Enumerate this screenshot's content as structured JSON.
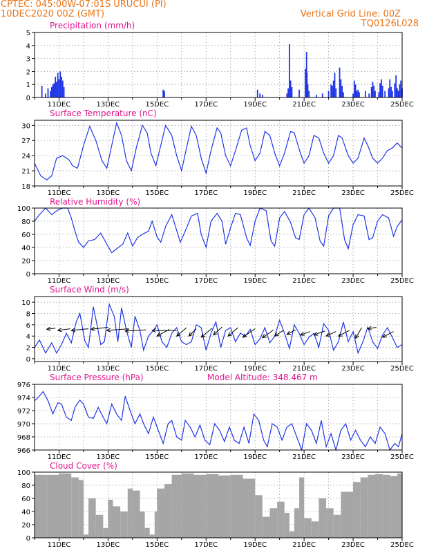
{
  "header": {
    "line1_left": "CPTEC:   045:00W-07:01S   URUCUI (PI)",
    "line2_left": "10DEC2020 00Z (GMT)",
    "line1_right": "Vertical Grid Line: 00Z",
    "line2_right": "TQ0126L028"
  },
  "colors": {
    "header": "#e8751a",
    "title": "#e0148c",
    "series": "#1f35e6",
    "cloud": "#a6a6a6",
    "wind": "#000000",
    "grid": "#9a9a9a"
  },
  "x_ticks": [
    "11DEC",
    "13DEC",
    "15DEC",
    "17DEC",
    "19DEC",
    "21DEC",
    "23DEC",
    "25DEC"
  ],
  "chart_data": [
    {
      "type": "bar",
      "title": "Precipitation (mm/h)",
      "ylim": [
        0,
        5
      ],
      "yticks": [
        0,
        1,
        2,
        3,
        4,
        5
      ],
      "points": [
        [
          0.3,
          0.9
        ],
        [
          0.45,
          0.3
        ],
        [
          0.55,
          0.7
        ],
        [
          0.65,
          0.5
        ],
        [
          0.7,
          0.8
        ],
        [
          0.75,
          1.0
        ],
        [
          0.8,
          1.1
        ],
        [
          0.85,
          1.6
        ],
        [
          0.9,
          1.2
        ],
        [
          0.95,
          1.9
        ],
        [
          1.0,
          1.4
        ],
        [
          1.05,
          2.0
        ],
        [
          1.1,
          1.6
        ],
        [
          1.15,
          1.3
        ],
        [
          1.2,
          0.8
        ],
        [
          5.25,
          0.6
        ],
        [
          5.3,
          0.5
        ],
        [
          9.1,
          0.6
        ],
        [
          9.2,
          0.3
        ],
        [
          9.3,
          0.2
        ],
        [
          10.3,
          0.3
        ],
        [
          10.35,
          0.7
        ],
        [
          10.4,
          4.1
        ],
        [
          10.45,
          1.3
        ],
        [
          10.5,
          0.8
        ],
        [
          10.8,
          0.6
        ],
        [
          11.05,
          2.2
        ],
        [
          11.1,
          3.5
        ],
        [
          11.12,
          1.9
        ],
        [
          11.15,
          1.0
        ],
        [
          11.2,
          0.5
        ],
        [
          11.5,
          0.2
        ],
        [
          11.75,
          0.3
        ],
        [
          12.0,
          0.5
        ],
        [
          12.1,
          1.0
        ],
        [
          12.15,
          0.9
        ],
        [
          12.2,
          1.3
        ],
        [
          12.25,
          1.9
        ],
        [
          12.3,
          0.7
        ],
        [
          12.45,
          2.3
        ],
        [
          12.5,
          1.4
        ],
        [
          12.55,
          0.9
        ],
        [
          12.6,
          0.4
        ],
        [
          13.0,
          0.3
        ],
        [
          13.05,
          1.3
        ],
        [
          13.1,
          1.0
        ],
        [
          13.15,
          0.5
        ],
        [
          13.2,
          0.6
        ],
        [
          13.25,
          0.4
        ],
        [
          13.5,
          0.5
        ],
        [
          13.65,
          0.3
        ],
        [
          13.75,
          0.8
        ],
        [
          13.8,
          1.2
        ],
        [
          13.85,
          0.9
        ],
        [
          13.9,
          0.5
        ],
        [
          14.05,
          0.4
        ],
        [
          14.1,
          1.1
        ],
        [
          14.15,
          1.4
        ],
        [
          14.2,
          0.9
        ],
        [
          14.3,
          0.5
        ],
        [
          14.45,
          0.7
        ],
        [
          14.5,
          1.4
        ],
        [
          14.55,
          0.8
        ],
        [
          14.6,
          0.5
        ],
        [
          14.7,
          1.1
        ],
        [
          14.75,
          1.7
        ],
        [
          14.8,
          0.7
        ],
        [
          14.85,
          0.5
        ],
        [
          14.9,
          1.0
        ],
        [
          14.95,
          1.3
        ],
        [
          15.0,
          0.7
        ]
      ]
    },
    {
      "type": "line",
      "title": "Surface Temperature (nC)",
      "ylim": [
        18,
        31
      ],
      "yticks": [
        18,
        21,
        24,
        27,
        30
      ],
      "x": [
        0,
        0.25,
        0.5,
        0.7,
        0.9,
        1.15,
        1.4,
        1.55,
        1.75,
        2.0,
        2.25,
        2.5,
        2.75,
        2.95,
        3.15,
        3.35,
        3.55,
        3.75,
        3.95,
        4.15,
        4.4,
        4.6,
        4.75,
        4.95,
        5.15,
        5.35,
        5.6,
        5.8,
        6.0,
        6.2,
        6.4,
        6.6,
        6.8,
        7.0,
        7.2,
        7.45,
        7.6,
        7.8,
        8.0,
        8.2,
        8.45,
        8.65,
        8.8,
        9.0,
        9.2,
        9.4,
        9.6,
        9.8,
        10.0,
        10.2,
        10.45,
        10.6,
        10.85,
        11.0,
        11.2,
        11.4,
        11.6,
        11.8,
        12.0,
        12.2,
        12.4,
        12.55,
        12.8,
        13.0,
        13.2,
        13.45,
        13.6,
        13.8,
        14.0,
        14.2,
        14.4,
        14.6,
        14.8,
        15.0
      ],
      "values": [
        22.5,
        20.0,
        19.2,
        20.0,
        23.5,
        24.0,
        23.2,
        22.0,
        21.5,
        26.0,
        29.8,
        27.0,
        23.0,
        21.5,
        26.0,
        30.5,
        28.0,
        23.0,
        21.0,
        25.5,
        30.0,
        28.5,
        24.5,
        22.0,
        26.0,
        30.0,
        28.0,
        24.0,
        21.0,
        25.5,
        29.8,
        28.0,
        23.5,
        20.5,
        25.0,
        29.5,
        28.5,
        24.0,
        22.0,
        25.0,
        29.0,
        29.5,
        26.0,
        23.0,
        24.5,
        28.8,
        28.0,
        24.5,
        22.0,
        24.5,
        28.8,
        28.5,
        24.5,
        22.5,
        24.0,
        28.0,
        27.5,
        24.5,
        22.5,
        24.0,
        28.0,
        27.5,
        24.0,
        22.5,
        23.5,
        27.5,
        26.0,
        23.5,
        22.5,
        23.5,
        25.0,
        25.5,
        26.5,
        25.5
      ]
    },
    {
      "type": "line",
      "title": "Relative Humidity (%)",
      "ylim": [
        0,
        100
      ],
      "yticks": [
        0,
        20,
        40,
        60,
        80,
        100
      ],
      "x": [
        0,
        0.2,
        0.45,
        0.7,
        0.95,
        1.15,
        1.35,
        1.5,
        1.65,
        1.8,
        2.0,
        2.2,
        2.45,
        2.7,
        2.95,
        3.15,
        3.35,
        3.6,
        3.8,
        4.0,
        4.2,
        4.4,
        4.65,
        4.8,
        5.0,
        5.15,
        5.35,
        5.6,
        5.75,
        5.95,
        6.15,
        6.4,
        6.65,
        6.8,
        7.0,
        7.2,
        7.45,
        7.65,
        7.8,
        8.0,
        8.2,
        8.4,
        8.65,
        8.8,
        9.0,
        9.2,
        9.45,
        9.65,
        9.8,
        10.0,
        10.2,
        10.45,
        10.65,
        10.8,
        11.0,
        11.2,
        11.45,
        11.65,
        11.8,
        12.0,
        12.2,
        12.45,
        12.65,
        12.8,
        13.0,
        13.2,
        13.45,
        13.65,
        13.8,
        14.0,
        14.2,
        14.45,
        14.65,
        14.8,
        15.0
      ],
      "values": [
        80,
        90,
        100,
        90,
        97,
        100,
        100,
        85,
        65,
        48,
        40,
        50,
        52,
        62,
        45,
        32,
        38,
        45,
        62,
        42,
        55,
        60,
        65,
        80,
        56,
        48,
        72,
        90,
        72,
        48,
        65,
        88,
        92,
        60,
        40,
        80,
        92,
        80,
        45,
        70,
        92,
        90,
        55,
        43,
        80,
        100,
        96,
        50,
        42,
        85,
        95,
        78,
        55,
        52,
        90,
        100,
        85,
        50,
        42,
        88,
        100,
        100,
        52,
        38,
        75,
        90,
        88,
        52,
        55,
        80,
        90,
        85,
        57,
        72,
        82
      ]
    },
    {
      "type": "line",
      "title": "Surface Wind (m/s)",
      "ylim": [
        -0.5,
        11
      ],
      "yticks": [
        0,
        2,
        4,
        6,
        8,
        10
      ],
      "x": [
        0,
        0.2,
        0.45,
        0.7,
        0.9,
        1.1,
        1.3,
        1.5,
        1.7,
        1.85,
        2.05,
        2.2,
        2.4,
        2.55,
        2.7,
        2.85,
        3.05,
        3.25,
        3.4,
        3.55,
        3.75,
        3.95,
        4.1,
        4.3,
        4.45,
        4.65,
        4.85,
        5.0,
        5.2,
        5.4,
        5.6,
        5.8,
        6.0,
        6.2,
        6.4,
        6.6,
        6.8,
        7.0,
        7.2,
        7.4,
        7.6,
        7.8,
        8.0,
        8.2,
        8.4,
        8.6,
        8.8,
        9.0,
        9.2,
        9.4,
        9.6,
        9.8,
        10.0,
        10.2,
        10.4,
        10.6,
        10.8,
        11.0,
        11.2,
        11.4,
        11.6,
        11.8,
        12.0,
        12.2,
        12.4,
        12.6,
        12.8,
        13.0,
        13.2,
        13.4,
        13.6,
        13.8,
        14.0,
        14.2,
        14.4,
        14.6,
        14.8,
        15.0
      ],
      "values": [
        2.0,
        3.3,
        1.0,
        2.8,
        1.0,
        2.5,
        4.5,
        2.8,
        6.5,
        8.0,
        3.2,
        2.0,
        9.2,
        6.0,
        2.5,
        3.0,
        9.6,
        7.5,
        3.0,
        9.0,
        5.0,
        2.0,
        7.5,
        5.0,
        1.5,
        4.0,
        5.0,
        6.0,
        3.0,
        2.0,
        4.5,
        5.5,
        3.0,
        2.5,
        3.0,
        6.0,
        5.5,
        1.5,
        4.5,
        6.5,
        2.0,
        5.0,
        5.5,
        3.0,
        4.5,
        4.0,
        5.2,
        2.5,
        3.5,
        5.5,
        2.8,
        4.0,
        6.8,
        4.5,
        1.8,
        6.0,
        4.5,
        2.5,
        3.8,
        4.5,
        2.0,
        6.2,
        5.0,
        1.5,
        3.0,
        6.5,
        3.0,
        4.8,
        1.0,
        3.0,
        5.6,
        3.0,
        1.8,
        4.2,
        5.5,
        3.8,
        2.0,
        2.5
      ],
      "arrows": [
        [
          0.5,
          5.2,
          0.35,
          0.2
        ],
        [
          0.95,
          5.0,
          0.5,
          0.3
        ],
        [
          1.5,
          5.0,
          0.7,
          0.3
        ],
        [
          2.3,
          5.2,
          0.7,
          0.35
        ],
        [
          2.95,
          5.0,
          0.9,
          0.3
        ],
        [
          3.7,
          4.9,
          0.85,
          0.2
        ],
        [
          4.8,
          5.0,
          1.0,
          0.0
        ],
        [
          5.0,
          4.0,
          0.5,
          1.2
        ],
        [
          5.8,
          4.0,
          0.4,
          1.5
        ],
        [
          6.3,
          4.0,
          0.3,
          1.3
        ],
        [
          6.8,
          3.8,
          0.45,
          1.6
        ],
        [
          7.3,
          4.2,
          0.35,
          1.4
        ],
        [
          7.9,
          4.0,
          0.4,
          1.5
        ],
        [
          8.5,
          3.8,
          0.5,
          1.5
        ],
        [
          9.3,
          3.7,
          0.45,
          1.4
        ],
        [
          9.8,
          4.0,
          0.35,
          1.0
        ],
        [
          10.3,
          4.3,
          0.35,
          0.8
        ],
        [
          10.85,
          4.2,
          0.4,
          0.6
        ],
        [
          11.4,
          4.2,
          0.45,
          0.7
        ],
        [
          11.9,
          4.0,
          0.4,
          0.8
        ],
        [
          12.4,
          4.0,
          0.45,
          1.0
        ],
        [
          13.1,
          3.6,
          0.25,
          1.9
        ],
        [
          13.6,
          5.3,
          0.35,
          0.25
        ],
        [
          14.2,
          3.8,
          0.45,
          1.0
        ]
      ]
    },
    {
      "type": "line",
      "title": "Surface Pressure (hPa)",
      "annotation": "Model Altitude: 348.467 m",
      "ylim": [
        966,
        976
      ],
      "yticks": [
        966,
        968,
        970,
        972,
        974,
        976
      ],
      "x": [
        0,
        0.15,
        0.35,
        0.55,
        0.75,
        0.95,
        1.1,
        1.3,
        1.5,
        1.65,
        1.85,
        2.0,
        2.2,
        2.4,
        2.6,
        2.8,
        2.95,
        3.15,
        3.35,
        3.55,
        3.7,
        3.9,
        4.1,
        4.3,
        4.45,
        4.65,
        4.85,
        5.05,
        5.25,
        5.45,
        5.6,
        5.8,
        6.0,
        6.15,
        6.35,
        6.55,
        6.75,
        6.95,
        7.15,
        7.35,
        7.55,
        7.75,
        7.95,
        8.15,
        8.35,
        8.55,
        8.75,
        8.95,
        9.15,
        9.35,
        9.5,
        9.7,
        9.9,
        10.1,
        10.3,
        10.5,
        10.7,
        10.9,
        11.1,
        11.3,
        11.5,
        11.7,
        11.9,
        12.1,
        12.3,
        12.5,
        12.7,
        12.9,
        13.1,
        13.3,
        13.5,
        13.7,
        13.9,
        14.1,
        14.3,
        14.5,
        14.7,
        14.85,
        15.0
      ],
      "values": [
        973.5,
        974.0,
        974.9,
        973.5,
        971.5,
        973.2,
        973.0,
        971.0,
        970.5,
        972.5,
        973.6,
        973.0,
        971.0,
        970.8,
        972.5,
        971.0,
        970.0,
        973.0,
        971.5,
        970.5,
        974.2,
        972.0,
        970.0,
        971.5,
        970.0,
        968.5,
        971.0,
        969.0,
        967.0,
        970.0,
        970.5,
        968.0,
        967.5,
        970.5,
        969.5,
        968.0,
        969.8,
        967.5,
        966.8,
        970.0,
        969.0,
        967.3,
        969.5,
        967.5,
        967.0,
        969.5,
        967.0,
        971.5,
        970.5,
        967.5,
        966.5,
        970.0,
        969.5,
        967.5,
        969.5,
        970.0,
        968.0,
        966.0,
        970.0,
        969.0,
        967.0,
        970.5,
        966.5,
        968.5,
        966.0,
        969.0,
        970.0,
        967.5,
        969.0,
        967.5,
        966.5,
        968.0,
        967.0,
        969.5,
        968.5,
        966.0,
        967.0,
        966.5,
        968.5
      ]
    },
    {
      "type": "bar",
      "title": "Cloud Cover (%)",
      "ylim": [
        0,
        100
      ],
      "yticks": [
        0,
        20,
        40,
        60,
        80,
        100
      ],
      "x": [
        0,
        0.5,
        1.0,
        1.5,
        1.8,
        2.0,
        2.2,
        2.5,
        2.8,
        3.0,
        3.2,
        3.5,
        3.8,
        4.0,
        4.3,
        4.5,
        4.7,
        4.9,
        5.0,
        5.3,
        5.6,
        6.0,
        6.5,
        7.0,
        7.5,
        8.0,
        8.5,
        9.0,
        9.3,
        9.6,
        9.9,
        10.2,
        10.4,
        10.6,
        10.8,
        11.0,
        11.3,
        11.6,
        11.9,
        12.2,
        12.5,
        12.8,
        13.0,
        13.3,
        13.6,
        13.9,
        14.2,
        14.5,
        14.8,
        15.0
      ],
      "values": [
        96,
        96,
        98,
        92,
        88,
        5,
        60,
        35,
        15,
        58,
        48,
        40,
        75,
        72,
        40,
        15,
        5,
        40,
        75,
        82,
        96,
        98,
        96,
        97,
        95,
        96,
        90,
        65,
        32,
        45,
        55,
        38,
        10,
        45,
        92,
        30,
        25,
        60,
        45,
        35,
        70,
        70,
        85,
        92,
        96,
        97,
        96,
        94,
        98,
        97
      ]
    }
  ]
}
